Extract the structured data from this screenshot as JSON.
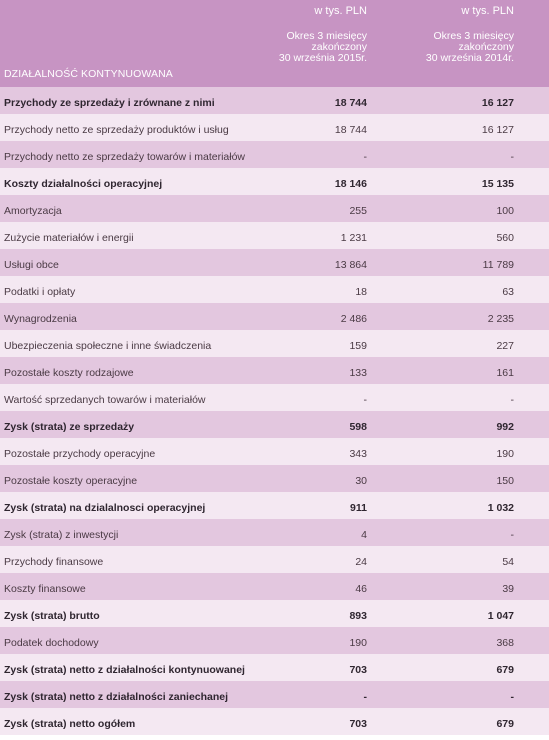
{
  "header": {
    "unit_2015": "w tys. PLN",
    "unit_2014": "w tys. PLN",
    "period_2015": [
      "Okres 3 miesięcy",
      "zakończony",
      "30 września 2015r."
    ],
    "period_2014": [
      "Okres 3 miesięcy",
      "zakończony",
      "30 września 2014r."
    ],
    "section_label": "DZIAŁALNOŚĆ KONTYNUOWANA"
  },
  "rows": [
    {
      "label": "Przychody ze sprzedaży i zrównane z nimi",
      "v2015": "18 744",
      "v2014": "16 127",
      "bold": true
    },
    {
      "label": "Przychody netto ze sprzedaży produktów i usług",
      "v2015": "18 744",
      "v2014": "16 127",
      "bold": false
    },
    {
      "label": "Przychody netto ze sprzedaży towarów i materiałów",
      "v2015": "-",
      "v2014": "-",
      "bold": false
    },
    {
      "label": "Koszty działalności operacyjnej",
      "v2015": "18 146",
      "v2014": "15 135",
      "bold": true
    },
    {
      "label": "Amortyzacja",
      "v2015": "255",
      "v2014": "100",
      "bold": false
    },
    {
      "label": "Zużycie materiałów i energii",
      "v2015": "1 231",
      "v2014": "560",
      "bold": false
    },
    {
      "label": "Usługi obce",
      "v2015": "13 864",
      "v2014": "11 789",
      "bold": false
    },
    {
      "label": "Podatki i opłaty",
      "v2015": "18",
      "v2014": "63",
      "bold": false
    },
    {
      "label": "Wynagrodzenia",
      "v2015": "2 486",
      "v2014": "2 235",
      "bold": false
    },
    {
      "label": "Ubezpieczenia społeczne i inne świadczenia",
      "v2015": "159",
      "v2014": "227",
      "bold": false
    },
    {
      "label": "Pozostałe koszty rodzajowe",
      "v2015": "133",
      "v2014": "161",
      "bold": false
    },
    {
      "label": "Wartość sprzedanych towarów i materiałów",
      "v2015": "-",
      "v2014": "-",
      "bold": false
    },
    {
      "label": "Zysk (strata) ze sprzedaży",
      "v2015": "598",
      "v2014": "992",
      "bold": true
    },
    {
      "label": "Pozostałe przychody operacyjne",
      "v2015": "343",
      "v2014": "190",
      "bold": false
    },
    {
      "label": "Pozostałe koszty operacyjne",
      "v2015": "30",
      "v2014": "150",
      "bold": false
    },
    {
      "label": "Zysk (strata) na dzialalnosci operacyjnej",
      "v2015": "911",
      "v2014": "1 032",
      "bold": true
    },
    {
      "label": "Zysk (strata) z inwestycji",
      "v2015": "4",
      "v2014": "-",
      "bold": false
    },
    {
      "label": "Przychody finansowe",
      "v2015": "24",
      "v2014": "54",
      "bold": false
    },
    {
      "label": "Koszty finansowe",
      "v2015": "46",
      "v2014": "39",
      "bold": false
    },
    {
      "label": "Zysk (strata) brutto",
      "v2015": "893",
      "v2014": "1 047",
      "bold": true
    },
    {
      "label": "Podatek dochodowy",
      "v2015": "190",
      "v2014": "368",
      "bold": false
    },
    {
      "label": "Zysk (strata) netto z działalności kontynuowanej",
      "v2015": "703",
      "v2014": "679",
      "bold": true
    },
    {
      "label": "Zysk (strata) netto z działalności zaniechanej",
      "v2015": "-",
      "v2014": "-",
      "bold": true
    },
    {
      "label": "Zysk (strata) netto ogółem",
      "v2015": "703",
      "v2014": "679",
      "bold": true
    }
  ]
}
